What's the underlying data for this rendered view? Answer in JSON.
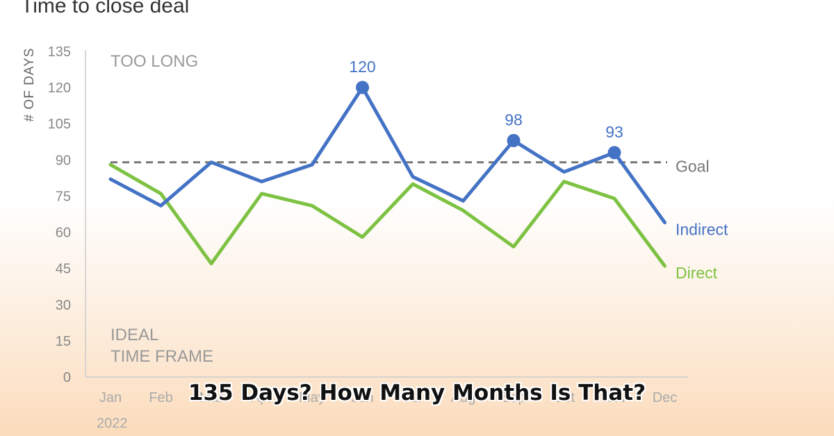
{
  "headline": "135 Days? How Many Months Is That?",
  "chart_data": {
    "type": "line",
    "title": "Time to close deal",
    "ylabel": "# OF DAYS",
    "xlabel": "",
    "year_label": "2022",
    "ylim": [
      0,
      135
    ],
    "yticks": [
      0,
      15,
      30,
      45,
      60,
      75,
      90,
      105,
      120,
      135
    ],
    "categories": [
      "Jan",
      "Feb",
      "Mar",
      "Apr",
      "May",
      "Jun",
      "Jul",
      "Aug",
      "Sep",
      "Oct",
      "Nov",
      "Dec"
    ],
    "series": [
      {
        "name": "Indirect",
        "color": "#4472c4",
        "values": [
          82,
          71,
          89,
          81,
          88,
          120,
          83,
          73,
          98,
          85,
          93,
          64
        ],
        "highlights": [
          {
            "index": 5,
            "label": "120"
          },
          {
            "index": 8,
            "label": "98"
          },
          {
            "index": 10,
            "label": "93"
          }
        ]
      },
      {
        "name": "Direct",
        "color": "#7dc242",
        "values": [
          88,
          76,
          47,
          76,
          71,
          58,
          80,
          69,
          54,
          81,
          74,
          46
        ]
      }
    ],
    "goal": {
      "value": 89,
      "label": "Goal",
      "color": "#777777"
    },
    "zone_labels": {
      "top": "TOO LONG",
      "bottom_line1": "IDEAL",
      "bottom_line2": "TIME FRAME"
    },
    "grid": false
  }
}
